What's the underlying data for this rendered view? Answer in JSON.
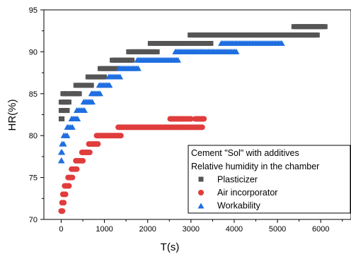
{
  "chart_data": {
    "type": "scatter",
    "xlabel": "T(s)",
    "ylabel": "HR(%)",
    "xlim": [
      -400,
      6700
    ],
    "ylim": [
      70,
      95
    ],
    "xticks": [
      0,
      1000,
      2000,
      3000,
      4000,
      5000,
      6000
    ],
    "yticks": [
      70,
      75,
      80,
      85,
      90,
      95
    ],
    "grid": false,
    "legend": {
      "placement": "lower-right",
      "title_lines": [
        "Cement \"Sol\" with additives",
        "Relative humidity in the chamber"
      ]
    },
    "series": [
      {
        "name": "Plasticizer",
        "marker": "square",
        "color": "#555555",
        "runs": [
          {
            "y": 82,
            "x_start": 0,
            "x_end": 20
          },
          {
            "y": 83,
            "x_start": 0,
            "x_end": 140
          },
          {
            "y": 84,
            "x_start": 0,
            "x_end": 180
          },
          {
            "y": 85,
            "x_start": 40,
            "x_end": 140
          },
          {
            "y": 85,
            "x_start": 220,
            "x_end": 420
          },
          {
            "y": 86,
            "x_start": 340,
            "x_end": 700
          },
          {
            "y": 87,
            "x_start": 620,
            "x_end": 1000
          },
          {
            "y": 88,
            "x_start": 900,
            "x_end": 1300
          },
          {
            "y": 89,
            "x_start": 1180,
            "x_end": 1640
          },
          {
            "y": 90,
            "x_start": 1560,
            "x_end": 2220
          },
          {
            "y": 91,
            "x_start": 2060,
            "x_end": 3460
          },
          {
            "y": 92,
            "x_start": 2980,
            "x_end": 5920
          },
          {
            "y": 93,
            "x_start": 5380,
            "x_end": 6100
          }
        ]
      },
      {
        "name": "Air incorporator",
        "marker": "circle",
        "color": "#e03c3c",
        "runs": [
          {
            "y": 71,
            "x_start": 0,
            "x_end": 30
          },
          {
            "y": 72,
            "x_start": 20,
            "x_end": 60
          },
          {
            "y": 73,
            "x_start": 40,
            "x_end": 100
          },
          {
            "y": 74,
            "x_start": 80,
            "x_end": 180
          },
          {
            "y": 75,
            "x_start": 160,
            "x_end": 260
          },
          {
            "y": 76,
            "x_start": 240,
            "x_end": 360
          },
          {
            "y": 77,
            "x_start": 340,
            "x_end": 500
          },
          {
            "y": 78,
            "x_start": 480,
            "x_end": 660
          },
          {
            "y": 79,
            "x_start": 640,
            "x_end": 850
          },
          {
            "y": 80,
            "x_start": 820,
            "x_end": 1380
          },
          {
            "y": 81,
            "x_start": 1320,
            "x_end": 3260
          },
          {
            "y": 82,
            "x_start": 2520,
            "x_end": 3000
          },
          {
            "y": 82,
            "x_start": 3100,
            "x_end": 3300
          }
        ]
      },
      {
        "name": "Workability",
        "marker": "triangle",
        "color": "#1f6fe0",
        "runs": [
          {
            "y": 77,
            "x_start": 0,
            "x_end": 10
          },
          {
            "y": 78,
            "x_start": 0,
            "x_end": 20
          },
          {
            "y": 79,
            "x_start": 20,
            "x_end": 60
          },
          {
            "y": 80,
            "x_start": 60,
            "x_end": 140
          },
          {
            "y": 81,
            "x_start": 140,
            "x_end": 260
          },
          {
            "y": 82,
            "x_start": 240,
            "x_end": 380
          },
          {
            "y": 83,
            "x_start": 360,
            "x_end": 540
          },
          {
            "y": 84,
            "x_start": 520,
            "x_end": 720
          },
          {
            "y": 85,
            "x_start": 700,
            "x_end": 900
          },
          {
            "y": 86,
            "x_start": 880,
            "x_end": 1120
          },
          {
            "y": 87,
            "x_start": 1100,
            "x_end": 1360
          },
          {
            "y": 88,
            "x_start": 1340,
            "x_end": 1780
          },
          {
            "y": 89,
            "x_start": 1760,
            "x_end": 2700
          },
          {
            "y": 90,
            "x_start": 2640,
            "x_end": 4050
          },
          {
            "y": 91,
            "x_start": 3700,
            "x_end": 5100
          }
        ]
      }
    ]
  }
}
